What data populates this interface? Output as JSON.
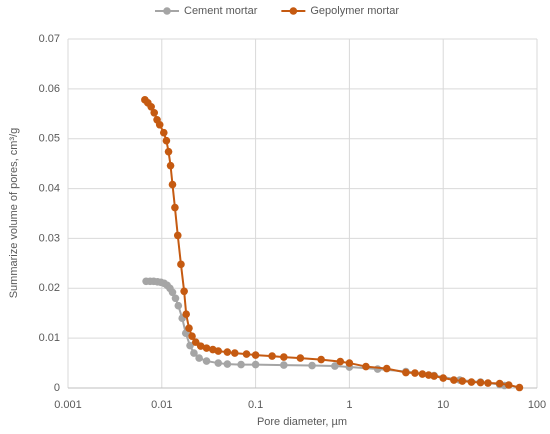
{
  "chart_data": {
    "type": "line",
    "x_label": "Pore diameter, µm",
    "y_label": "Summarize volume of pores, cm³/g",
    "xscale": "log",
    "grid": true,
    "legend": "top",
    "xlim": [
      0.001,
      100
    ],
    "xticks": [
      0.001,
      0.01,
      0.1,
      1,
      10,
      100
    ],
    "ylim": [
      0,
      0.07
    ],
    "yticks": [
      0,
      0.01,
      0.02,
      0.03,
      0.04,
      0.05,
      0.06,
      0.07
    ],
    "series": [
      {
        "name": "Cement mortar",
        "color": "#a5a5a5",
        "x": [
          0.0068,
          0.0075,
          0.0082,
          0.009,
          0.0098,
          0.0106,
          0.0114,
          0.0122,
          0.013,
          0.014,
          0.015,
          0.0165,
          0.018,
          0.02,
          0.022,
          0.025,
          0.03,
          0.04,
          0.05,
          0.07,
          0.1,
          0.2,
          0.4,
          0.7,
          1,
          2,
          4,
          8,
          15,
          25,
          40,
          45
        ],
        "values": [
          0.0214,
          0.0214,
          0.0214,
          0.0213,
          0.0212,
          0.021,
          0.0206,
          0.02,
          0.0192,
          0.018,
          0.0165,
          0.014,
          0.011,
          0.0085,
          0.007,
          0.006,
          0.0054,
          0.005,
          0.0048,
          0.0047,
          0.0047,
          0.0046,
          0.0045,
          0.0044,
          0.0042,
          0.0038,
          0.0033,
          0.0025,
          0.0016,
          0.0012,
          0.0007,
          0.0005
        ]
      },
      {
        "name": "Gepolymer mortar",
        "color": "#c55a11",
        "x": [
          0.0066,
          0.0071,
          0.0077,
          0.0083,
          0.0089,
          0.0095,
          0.0105,
          0.0112,
          0.0118,
          0.0124,
          0.013,
          0.0138,
          0.0148,
          0.016,
          0.0173,
          0.0182,
          0.0195,
          0.021,
          0.023,
          0.026,
          0.03,
          0.035,
          0.04,
          0.05,
          0.06,
          0.08,
          0.1,
          0.15,
          0.2,
          0.3,
          0.5,
          0.8,
          1.0,
          1.5,
          2.5,
          4,
          5,
          6,
          7,
          8,
          10,
          13,
          16,
          20,
          25,
          30,
          40,
          50,
          65
        ],
        "values": [
          0.0578,
          0.0572,
          0.0564,
          0.0552,
          0.0538,
          0.0528,
          0.0512,
          0.0496,
          0.0474,
          0.0446,
          0.0408,
          0.0362,
          0.0306,
          0.0248,
          0.0194,
          0.0148,
          0.012,
          0.0104,
          0.0092,
          0.0084,
          0.008,
          0.0077,
          0.0074,
          0.0072,
          0.007,
          0.0068,
          0.0066,
          0.0064,
          0.0062,
          0.006,
          0.0057,
          0.0053,
          0.005,
          0.0043,
          0.0039,
          0.0031,
          0.003,
          0.0028,
          0.0026,
          0.0024,
          0.002,
          0.0016,
          0.0014,
          0.0012,
          0.0011,
          0.001,
          0.0009,
          0.0006,
          0.0001
        ]
      }
    ]
  }
}
